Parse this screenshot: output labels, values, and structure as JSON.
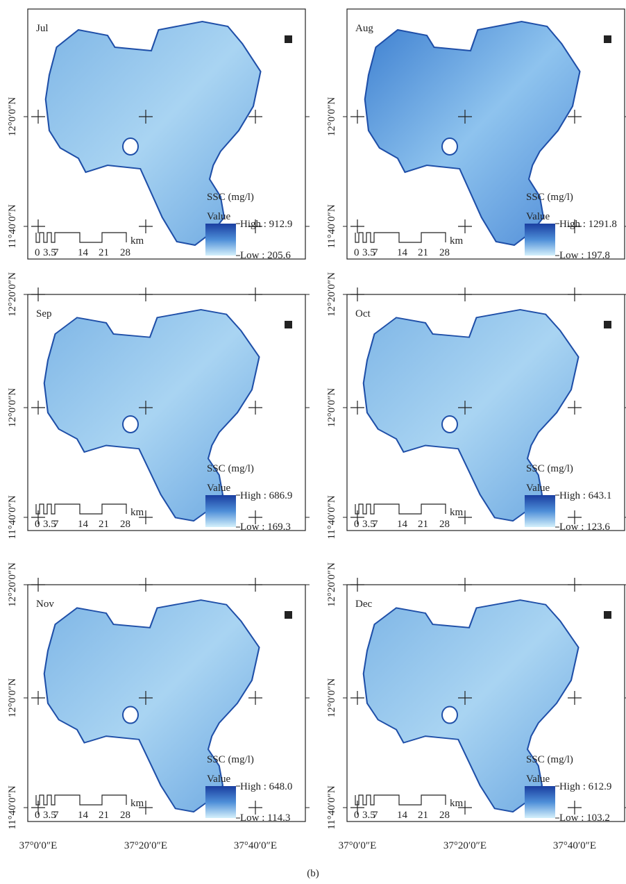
{
  "panels": [
    {
      "month": "Jul",
      "legend_title": "SSC (mg/l)",
      "legend_subtitle": "Value",
      "high": "High : 912.9",
      "low": "Low : 205.6",
      "lat_labels": [
        "12°0′0″N",
        "11°40′0″N"
      ]
    },
    {
      "month": "Aug",
      "legend_title": "SSC (mg/l)",
      "legend_subtitle": "Value",
      "high": "High : 1291.8",
      "low": "Low : 197.8",
      "lat_labels": [
        "12°0′0″N",
        "11°40′0″N"
      ]
    },
    {
      "month": "Sep",
      "legend_title": "SSC (mg/l)",
      "legend_subtitle": "Value",
      "high": "High : 686.9",
      "low": "Low : 169.3",
      "lat_labels": [
        "12°20′0″N",
        "12°0′0″N",
        "11°40′0″N"
      ]
    },
    {
      "month": "Oct",
      "legend_title": "SSC (mg/l)",
      "legend_subtitle": "Value",
      "high": "High : 643.1",
      "low": "Low : 123.6",
      "lat_labels": [
        "12°20′0″N",
        "12°0′0″N",
        "11°40′0″N"
      ]
    },
    {
      "month": "Nov",
      "legend_title": "SSC (mg/l)",
      "legend_subtitle": "Value",
      "high": "High : 648.0",
      "low": "Low : 114.3",
      "lat_labels": [
        "12°20′0″N",
        "12°0′0″N",
        "11°40′0″N"
      ]
    },
    {
      "month": "Dec",
      "legend_title": "SSC (mg/l)",
      "legend_subtitle": "Value",
      "high": "High : 612.9",
      "low": "Low : 103.2",
      "lat_labels": [
        "12°20′0″N",
        "12°0′0″N",
        "11°40′0″N"
      ]
    }
  ],
  "scale_bar": {
    "labels": [
      "0",
      "3.5",
      "7",
      "14",
      "21",
      "28"
    ],
    "unit": "km"
  },
  "lon_labels": [
    "37°0′0″E",
    "37°20′0″E",
    "37°40′0″E"
  ],
  "caption": "(b)"
}
